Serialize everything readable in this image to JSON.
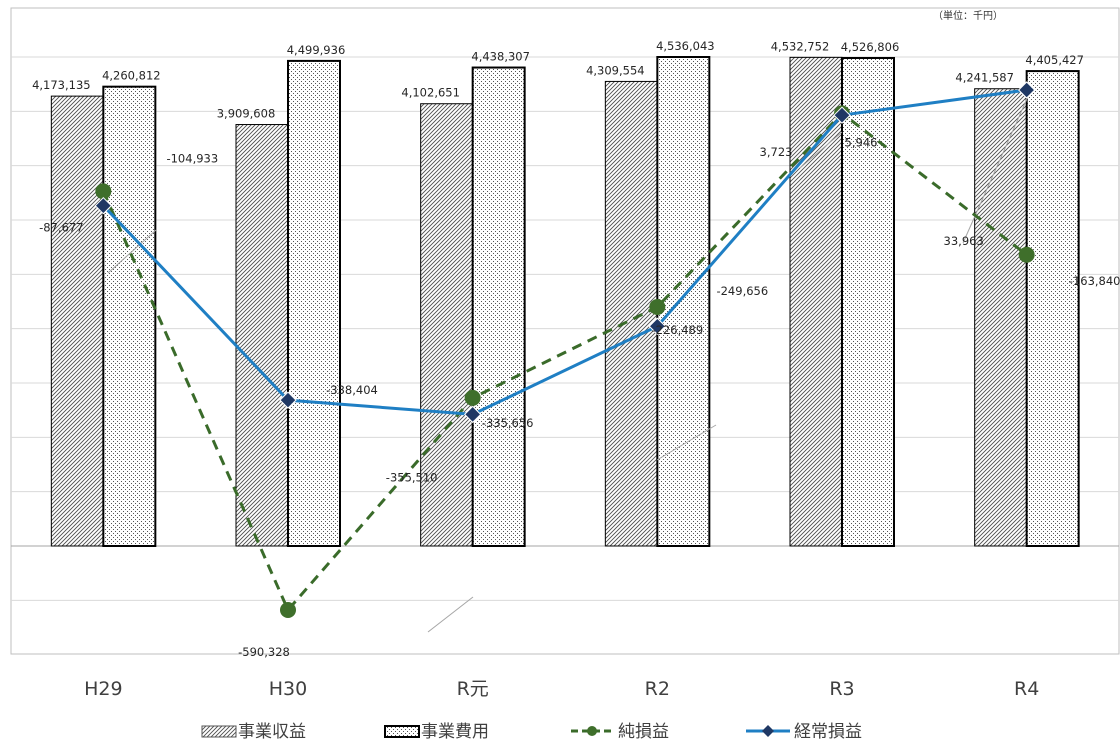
{
  "unit_note": "（単位：千円）",
  "colors": {
    "bar_stroke": "#000000",
    "gridline": "#d9d9d9",
    "plot_border": "#bfbfbf",
    "ordinary_line": "#1f7fc4",
    "ordinary_marker": "#1f3864",
    "net_line": "#3a6b2a",
    "net_marker": "#3f6f2b"
  },
  "chart_data": {
    "type": "bar",
    "categories": [
      "H29",
      "H30",
      "R元",
      "R2",
      "R3",
      "R4"
    ],
    "bar_series": [
      {
        "name": "事業収益",
        "pattern": "diagonal-hatch",
        "values": [
          4173135,
          3909608,
          4102651,
          4309554,
          4532752,
          4241587
        ]
      },
      {
        "name": "事業費用",
        "pattern": "dots",
        "values": [
          4260812,
          4499936,
          4438307,
          4536043,
          4526806,
          4405427
        ]
      }
    ],
    "line_series": [
      {
        "name": "純損益",
        "style": "dashed-circle",
        "values": [
          -87677,
          -590328,
          -335656,
          -226489,
          5946,
          -163840
        ]
      },
      {
        "name": "経常損益",
        "style": "solid-diamond",
        "values": [
          -104933,
          -338404,
          -355510,
          -249656,
          3723,
          33963
        ]
      }
    ],
    "grid": true,
    "legend_position": "bottom"
  }
}
